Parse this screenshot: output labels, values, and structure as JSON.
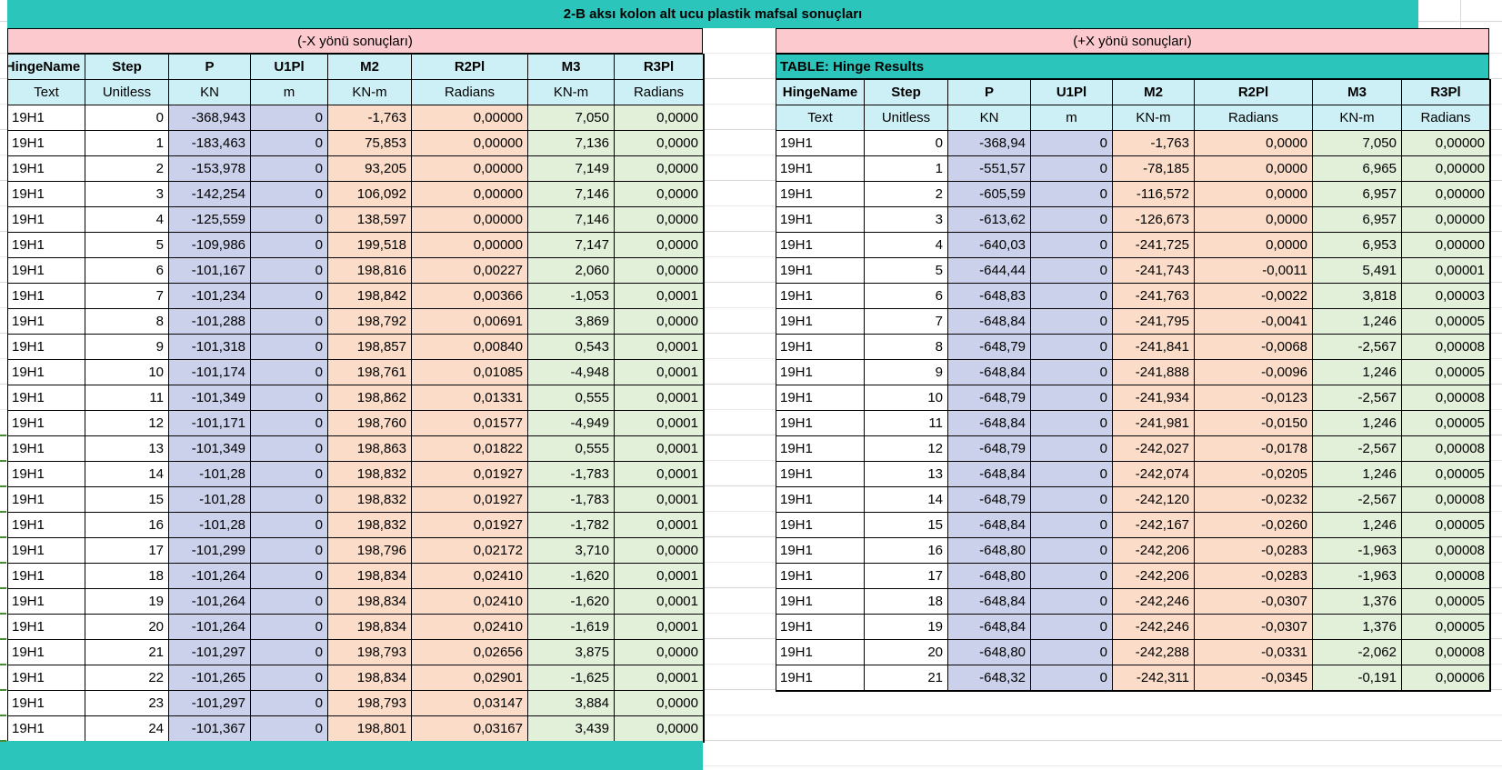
{
  "title": "2-B aksı kolon alt ucu plastik mafsal sonuçları",
  "colors": {
    "teal": "#2bc5bb",
    "pink": "#fbc9ce",
    "header_cyan": "#cdf0f6",
    "lavender": "#cbd1eb",
    "peach": "#fadcc8",
    "green": "#e2efd9"
  },
  "left_table": {
    "header": "(-X yönü sonuçları)",
    "columns": [
      "HingeName",
      "Step",
      "P",
      "U1Pl",
      "M2",
      "R2Pl",
      "M3",
      "R3Pl"
    ],
    "units": [
      "Text",
      "Unitless",
      "KN",
      "m",
      "KN-m",
      "Radians",
      "KN-m",
      "Radians"
    ],
    "rows": [
      [
        "19H1",
        "0",
        "-368,943",
        "0",
        "-1,763",
        "0,00000",
        "7,050",
        "0,0000"
      ],
      [
        "19H1",
        "1",
        "-183,463",
        "0",
        "75,853",
        "0,00000",
        "7,136",
        "0,0000"
      ],
      [
        "19H1",
        "2",
        "-153,978",
        "0",
        "93,205",
        "0,00000",
        "7,149",
        "0,0000"
      ],
      [
        "19H1",
        "3",
        "-142,254",
        "0",
        "106,092",
        "0,00000",
        "7,146",
        "0,0000"
      ],
      [
        "19H1",
        "4",
        "-125,559",
        "0",
        "138,597",
        "0,00000",
        "7,146",
        "0,0000"
      ],
      [
        "19H1",
        "5",
        "-109,986",
        "0",
        "199,518",
        "0,00000",
        "7,147",
        "0,0000"
      ],
      [
        "19H1",
        "6",
        "-101,167",
        "0",
        "198,816",
        "0,00227",
        "2,060",
        "0,0000"
      ],
      [
        "19H1",
        "7",
        "-101,234",
        "0",
        "198,842",
        "0,00366",
        "-1,053",
        "0,0001"
      ],
      [
        "19H1",
        "8",
        "-101,288",
        "0",
        "198,792",
        "0,00691",
        "3,869",
        "0,0000"
      ],
      [
        "19H1",
        "9",
        "-101,318",
        "0",
        "198,857",
        "0,00840",
        "0,543",
        "0,0001"
      ],
      [
        "19H1",
        "10",
        "-101,174",
        "0",
        "198,761",
        "0,01085",
        "-4,948",
        "0,0001"
      ],
      [
        "19H1",
        "11",
        "-101,349",
        "0",
        "198,862",
        "0,01331",
        "0,555",
        "0,0001"
      ],
      [
        "19H1",
        "12",
        "-101,171",
        "0",
        "198,760",
        "0,01577",
        "-4,949",
        "0,0001"
      ],
      [
        "19H1",
        "13",
        "-101,349",
        "0",
        "198,863",
        "0,01822",
        "0,555",
        "0,0001"
      ],
      [
        "19H1",
        "14",
        "-101,28",
        "0",
        "198,832",
        "0,01927",
        "-1,783",
        "0,0001"
      ],
      [
        "19H1",
        "15",
        "-101,28",
        "0",
        "198,832",
        "0,01927",
        "-1,783",
        "0,0001"
      ],
      [
        "19H1",
        "16",
        "-101,28",
        "0",
        "198,832",
        "0,01927",
        "-1,782",
        "0,0001"
      ],
      [
        "19H1",
        "17",
        "-101,299",
        "0",
        "198,796",
        "0,02172",
        "3,710",
        "0,0000"
      ],
      [
        "19H1",
        "18",
        "-101,264",
        "0",
        "198,834",
        "0,02410",
        "-1,620",
        "0,0001"
      ],
      [
        "19H1",
        "19",
        "-101,264",
        "0",
        "198,834",
        "0,02410",
        "-1,620",
        "0,0001"
      ],
      [
        "19H1",
        "20",
        "-101,264",
        "0",
        "198,834",
        "0,02410",
        "-1,619",
        "0,0001"
      ],
      [
        "19H1",
        "21",
        "-101,297",
        "0",
        "198,793",
        "0,02656",
        "3,875",
        "0,0000"
      ],
      [
        "19H1",
        "22",
        "-101,265",
        "0",
        "198,834",
        "0,02901",
        "-1,625",
        "0,0001"
      ],
      [
        "19H1",
        "23",
        "-101,297",
        "0",
        "198,793",
        "0,03147",
        "3,884",
        "0,0000"
      ],
      [
        "19H1",
        "24",
        "-101,367",
        "0",
        "198,801",
        "0,03167",
        "3,439",
        "0,0000"
      ]
    ]
  },
  "right_table": {
    "header": "(+X yönü sonuçları)",
    "table_label": "TABLE:  Hinge Results",
    "columns": [
      "HingeName",
      "Step",
      "P",
      "U1Pl",
      "M2",
      "R2Pl",
      "M3",
      "R3Pl"
    ],
    "units": [
      "Text",
      "Unitless",
      "KN",
      "m",
      "KN-m",
      "Radians",
      "KN-m",
      "Radians"
    ],
    "rows": [
      [
        "19H1",
        "0",
        "-368,94",
        "0",
        "-1,763",
        "0,0000",
        "7,050",
        "0,00000"
      ],
      [
        "19H1",
        "1",
        "-551,57",
        "0",
        "-78,185",
        "0,0000",
        "6,965",
        "0,00000"
      ],
      [
        "19H1",
        "2",
        "-605,59",
        "0",
        "-116,572",
        "0,0000",
        "6,957",
        "0,00000"
      ],
      [
        "19H1",
        "3",
        "-613,62",
        "0",
        "-126,673",
        "0,0000",
        "6,957",
        "0,00000"
      ],
      [
        "19H1",
        "4",
        "-640,03",
        "0",
        "-241,725",
        "0,0000",
        "6,953",
        "0,00000"
      ],
      [
        "19H1",
        "5",
        "-644,44",
        "0",
        "-241,743",
        "-0,0011",
        "5,491",
        "0,00001"
      ],
      [
        "19H1",
        "6",
        "-648,83",
        "0",
        "-241,763",
        "-0,0022",
        "3,818",
        "0,00003"
      ],
      [
        "19H1",
        "7",
        "-648,84",
        "0",
        "-241,795",
        "-0,0041",
        "1,246",
        "0,00005"
      ],
      [
        "19H1",
        "8",
        "-648,79",
        "0",
        "-241,841",
        "-0,0068",
        "-2,567",
        "0,00008"
      ],
      [
        "19H1",
        "9",
        "-648,84",
        "0",
        "-241,888",
        "-0,0096",
        "1,246",
        "0,00005"
      ],
      [
        "19H1",
        "10",
        "-648,79",
        "0",
        "-241,934",
        "-0,0123",
        "-2,567",
        "0,00008"
      ],
      [
        "19H1",
        "11",
        "-648,84",
        "0",
        "-241,981",
        "-0,0150",
        "1,246",
        "0,00005"
      ],
      [
        "19H1",
        "12",
        "-648,79",
        "0",
        "-242,027",
        "-0,0178",
        "-2,567",
        "0,00008"
      ],
      [
        "19H1",
        "13",
        "-648,84",
        "0",
        "-242,074",
        "-0,0205",
        "1,246",
        "0,00005"
      ],
      [
        "19H1",
        "14",
        "-648,79",
        "0",
        "-242,120",
        "-0,0232",
        "-2,567",
        "0,00008"
      ],
      [
        "19H1",
        "15",
        "-648,84",
        "0",
        "-242,167",
        "-0,0260",
        "1,246",
        "0,00005"
      ],
      [
        "19H1",
        "16",
        "-648,80",
        "0",
        "-242,206",
        "-0,0283",
        "-1,963",
        "0,00008"
      ],
      [
        "19H1",
        "17",
        "-648,80",
        "0",
        "-242,206",
        "-0,0283",
        "-1,963",
        "0,00008"
      ],
      [
        "19H1",
        "18",
        "-648,84",
        "0",
        "-242,246",
        "-0,0307",
        "1,376",
        "0,00005"
      ],
      [
        "19H1",
        "19",
        "-648,84",
        "0",
        "-242,246",
        "-0,0307",
        "1,376",
        "0,00005"
      ],
      [
        "19H1",
        "20",
        "-648,80",
        "0",
        "-242,288",
        "-0,0331",
        "-2,062",
        "0,00008"
      ],
      [
        "19H1",
        "21",
        "-648,32",
        "0",
        "-242,311",
        "-0,0345",
        "-0,191",
        "0,00006"
      ]
    ]
  }
}
